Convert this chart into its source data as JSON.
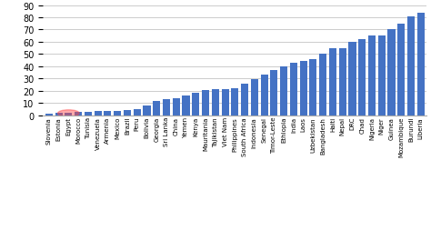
{
  "categories": [
    "Slovenia",
    "Estonia",
    "Egypt",
    "Morocco",
    "Tunisia",
    "Venezuela",
    "Armenia",
    "Mexico",
    "Brazil",
    "Peru",
    "Bolivia",
    "Georgia",
    "Sri Lanka",
    "China",
    "Yemen",
    "Kenya",
    "Mauritania",
    "Tajikistan",
    "Viet Nam",
    "Philippines",
    "South Africa",
    "Indonesia",
    "Senegal",
    "Timor-Leste",
    "Ethiopia",
    "India",
    "Laos",
    "Uzbekistan",
    "Bangladesh",
    "Haiti",
    "Nepal",
    "DRC",
    "Chad",
    "Nigeria",
    "Niger",
    "Guinea",
    "Mozambique",
    "Burundi",
    "Liberia"
  ],
  "values": [
    1.0,
    1.5,
    2.0,
    2.5,
    2.8,
    3.0,
    3.2,
    3.5,
    4.0,
    4.5,
    8.0,
    11.5,
    13.0,
    13.5,
    16.0,
    18.5,
    20.5,
    21.0,
    21.0,
    22.0,
    26.0,
    29.5,
    33.0,
    37.0,
    39.5,
    42.5,
    44.0,
    46.0,
    50.0,
    55.0,
    55.0,
    60.0,
    62.0,
    65.0,
    65.0,
    70.0,
    75.0,
    81.0,
    84.0
  ],
  "bar_color": "#4472c4",
  "highlight_index": 2,
  "highlight_color": "#ff4444",
  "highlight_alpha": 0.45,
  "background_color": "#ffffff",
  "grid_color": "#cccccc",
  "yticks": [
    0,
    10,
    20,
    30,
    40,
    50,
    60,
    70,
    80,
    90
  ],
  "ylim": [
    0,
    93
  ],
  "tick_fontsize": 7,
  "xlabel_fontsize": 5.0
}
